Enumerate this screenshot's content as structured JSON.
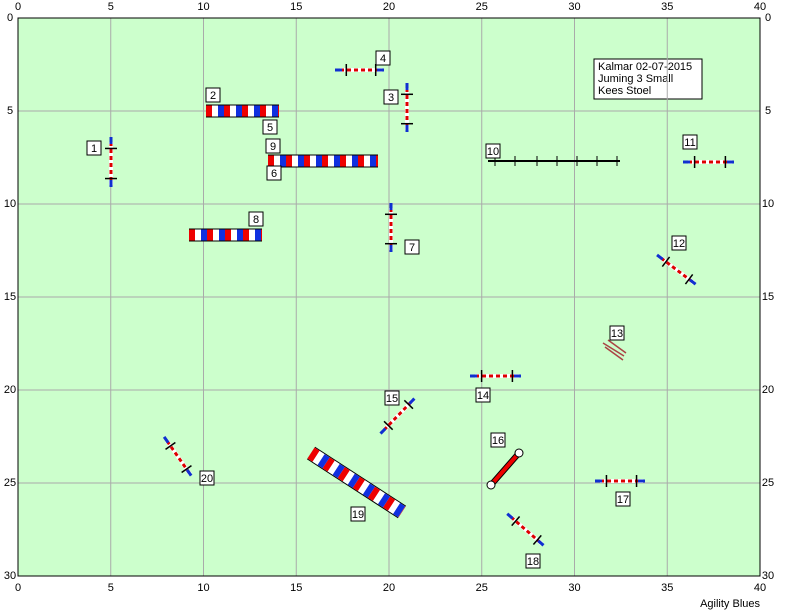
{
  "axes": {
    "xticks": [
      0,
      5,
      10,
      15,
      20,
      25,
      30,
      35,
      40
    ],
    "yticks": [
      0,
      5,
      10,
      15,
      20,
      25,
      30
    ]
  },
  "info": [
    "Kalmar 02-07-2015",
    "Juming 3 Small",
    "Kees Stoel"
  ],
  "obstacles": [
    1,
    2,
    3,
    4,
    5,
    6,
    7,
    8,
    9,
    10,
    11,
    12,
    13,
    14,
    15,
    16,
    17,
    18,
    19,
    20
  ],
  "footer": "Agility Blues"
}
